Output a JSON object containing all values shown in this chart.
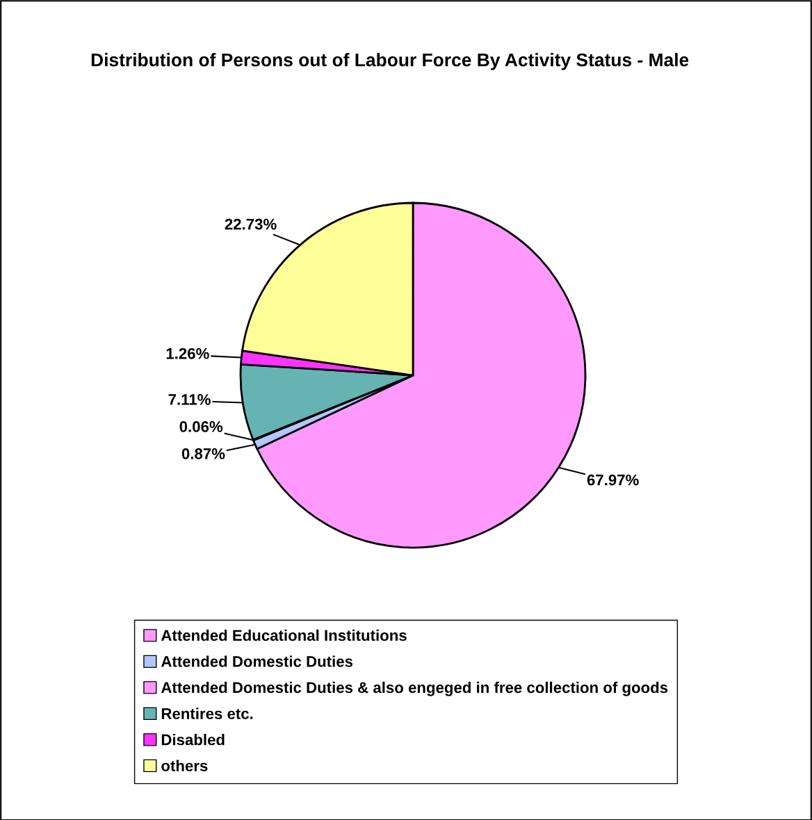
{
  "chart_data": {
    "type": "pie",
    "title": "Distribution of Persons out of Labour Force By Activity Status - Male",
    "categories": [
      "Attended Educational Institutions",
      "Attended Domestic Duties",
      "Attended Domestic Duties & also engeged in free collection of goods",
      "Rentires etc.",
      "Disabled",
      "others"
    ],
    "values": [
      67.97,
      0.87,
      0.06,
      7.11,
      1.26,
      22.73
    ],
    "value_labels": [
      "67.97%",
      "0.87%",
      "0.06%",
      "7.11%",
      "1.26%",
      "22.73%"
    ],
    "colors": [
      "#ff99ff",
      "#b3c6ff",
      "#ff99ff",
      "#66b3b3",
      "#ff33ff",
      "#ffff99"
    ],
    "legend": "bottom"
  }
}
